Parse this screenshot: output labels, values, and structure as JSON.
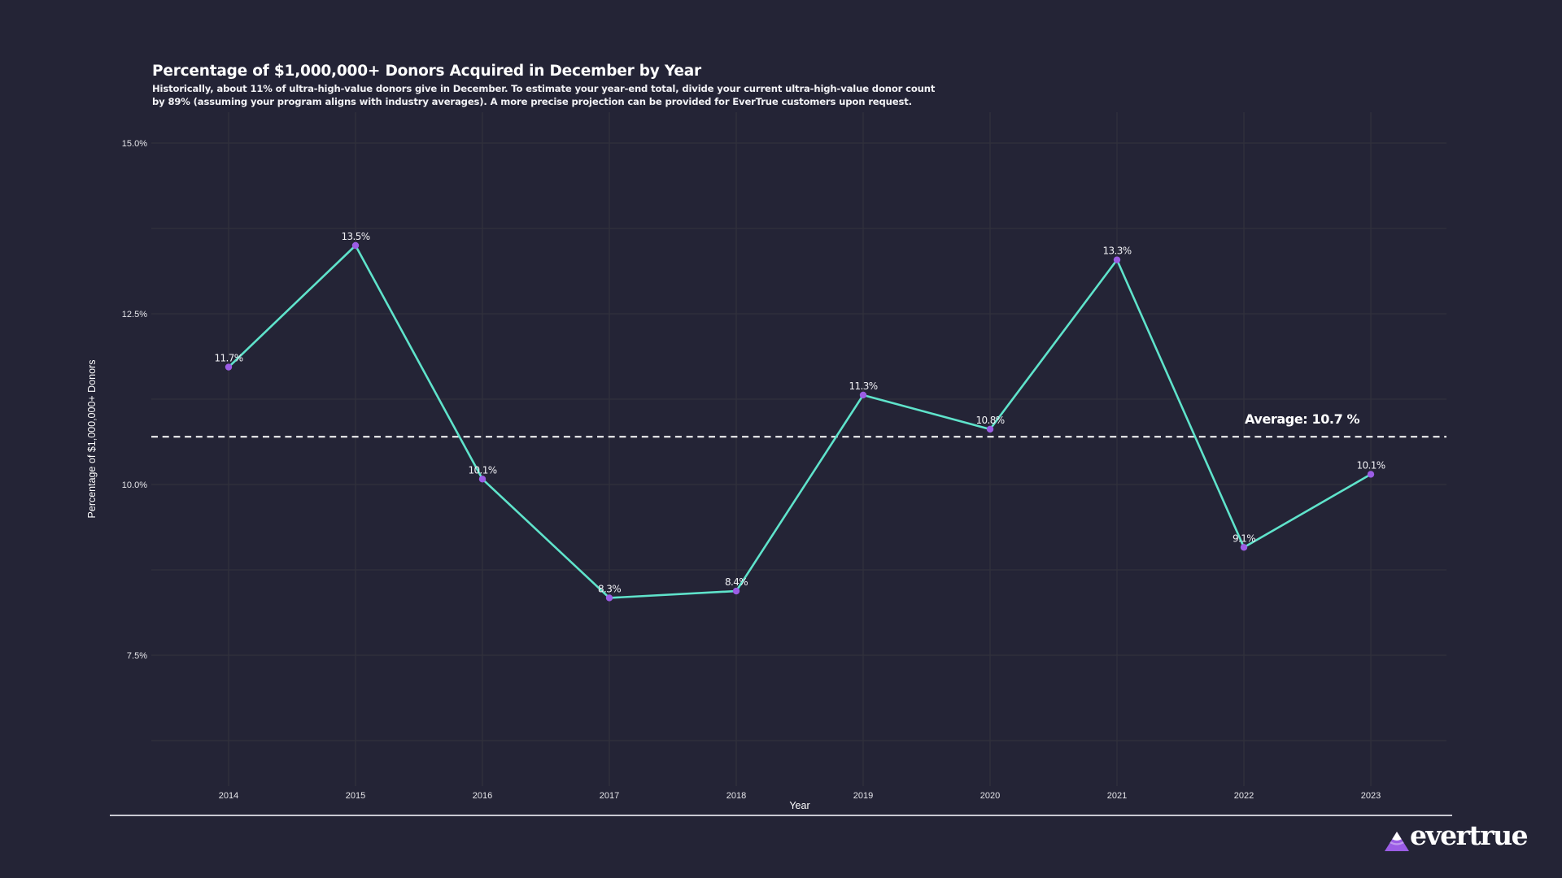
{
  "colors": {
    "background": "#242436",
    "grid": "#32323c",
    "line": "#5fe3cb",
    "point": "#9b5de5",
    "average_line": "#ffffff",
    "logo_purple": "#9b5de5"
  },
  "header": {
    "title": "Percentage of $1,000,000+ Donors Acquired in December by Year",
    "subtitle_line1": "Historically, about 11% of ultra-high-value donors give in December. To estimate your year-end total, divide your current ultra-high-value donor count",
    "subtitle_line2": "by 89% (assuming your program aligns with industry averages). A more precise projection can be provided for EverTrue customers upon request."
  },
  "chart_data": {
    "type": "line",
    "title": "Percentage of $1,000,000+ Donors Acquired in December by Year",
    "xlabel": "Year",
    "ylabel": "Percentage of $1,000,000+ Donors",
    "x": [
      2014,
      2015,
      2016,
      2017,
      2018,
      2019,
      2020,
      2021,
      2022,
      2023
    ],
    "x_tick_labels": [
      "2014",
      "2015",
      "2016",
      "2017",
      "2018",
      "2019",
      "2020",
      "2021",
      "2022",
      "2023"
    ],
    "series": [
      {
        "name": "Percentage of $1,000,000+ Donors",
        "values": [
          11.72,
          13.5,
          10.08,
          8.34,
          8.44,
          11.31,
          10.81,
          13.29,
          9.08,
          10.15
        ],
        "data_labels": [
          "11.7%",
          "13.5%",
          "10.1%",
          "8.3%",
          "8.4%",
          "11.3%",
          "10.8%",
          "13.3%",
          "9.1%",
          "10.1%"
        ]
      }
    ],
    "ylim": [
      5.95,
      15.4
    ],
    "y_ticks": [
      7.5,
      10.0,
      12.5,
      15.0
    ],
    "y_tick_labels": [
      "7.5%",
      "10.0%",
      "12.5%",
      "15.0%"
    ],
    "y_minor_gridlines": [
      6.25,
      8.75,
      11.25,
      13.75
    ],
    "grid": true,
    "average": {
      "value": 10.7,
      "label": "Average: 10.7 %"
    },
    "legend": "none"
  },
  "logo": {
    "text": "evertrue"
  }
}
